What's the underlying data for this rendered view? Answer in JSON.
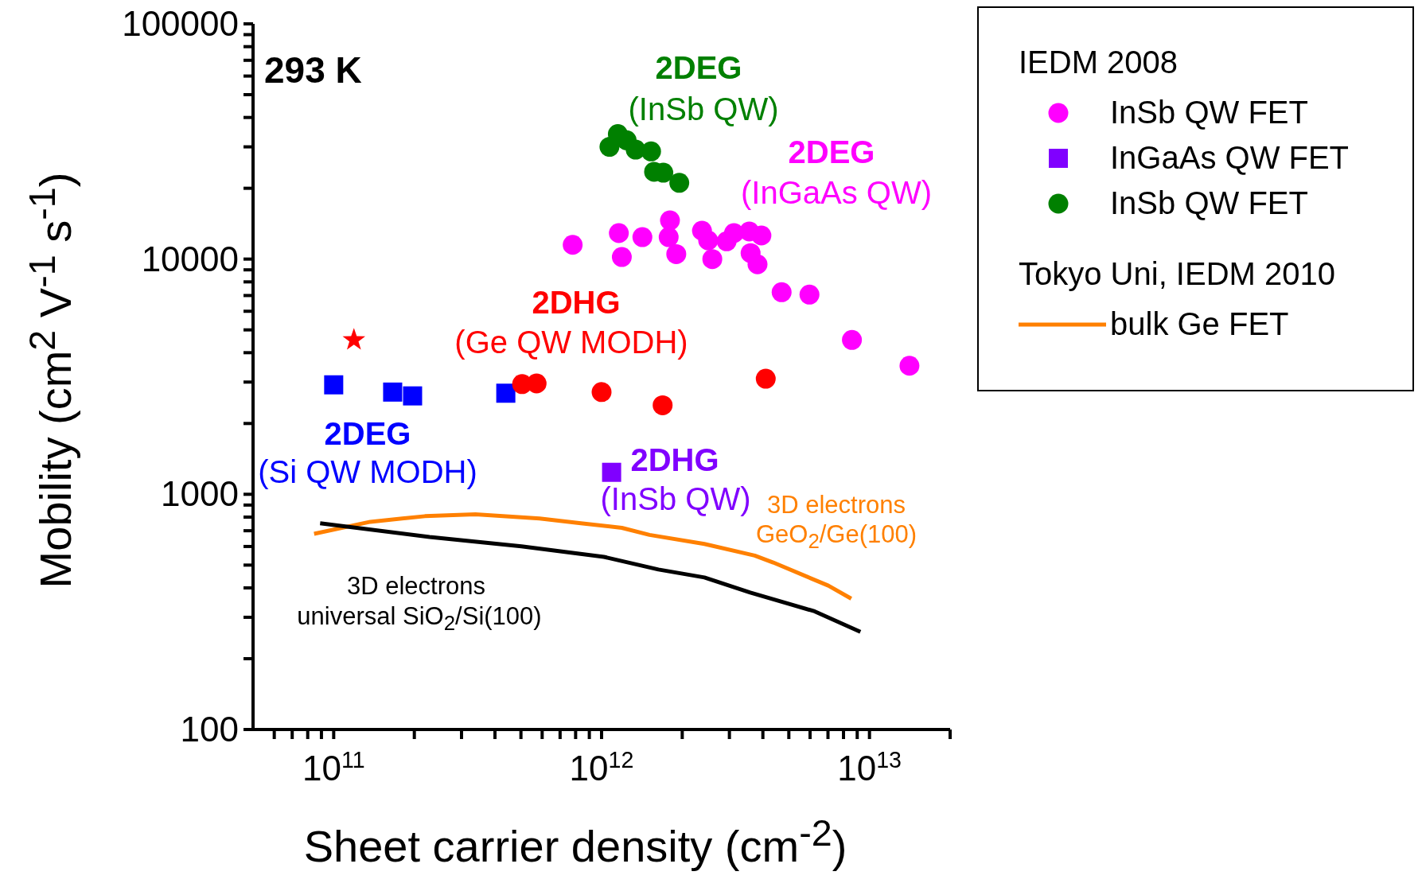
{
  "chart_data": {
    "type": "scatter",
    "xlabel": "Sheet carrier density (cm$^{-2}$)",
    "ylabel": "Mobility (cm$^{2}$ V$^{-1}$ s$^{-1}$)",
    "log": "xy",
    "legend": "right",
    "grid": false,
    "xlim": [
      50000000000.0,
      20000000000000.0
    ],
    "ylim": [
      100,
      100000
    ],
    "xticks": [
      {
        "value": 60000000000.0,
        "label": null
      },
      {
        "value": 70000000000.0,
        "label": null
      },
      {
        "value": 80000000000.0,
        "label": null
      },
      {
        "value": 90000000000.0,
        "label": null
      },
      {
        "value": 100000000000.0,
        "label": "10$^{11}$"
      },
      {
        "value": 200000000000.0,
        "label": null
      },
      {
        "value": 300000000000.0,
        "label": null
      },
      {
        "value": 400000000000.0,
        "label": null
      },
      {
        "value": 500000000000.0,
        "label": null
      },
      {
        "value": 600000000000.0,
        "label": null
      },
      {
        "value": 700000000000.0,
        "label": null
      },
      {
        "value": 800000000000.0,
        "label": null
      },
      {
        "value": 900000000000.0,
        "label": null
      },
      {
        "value": 1000000000000.0,
        "label": "10$^{12}$"
      },
      {
        "value": 2000000000000.0,
        "label": null
      },
      {
        "value": 3000000000000.0,
        "label": null
      },
      {
        "value": 4000000000000.0,
        "label": null
      },
      {
        "value": 5000000000000.0,
        "label": null
      },
      {
        "value": 6000000000000.0,
        "label": null
      },
      {
        "value": 7000000000000.0,
        "label": null
      },
      {
        "value": 8000000000000.0,
        "label": null
      },
      {
        "value": 9000000000000.0,
        "label": null
      },
      {
        "value": 10000000000000.0,
        "label": "10$^{13}$"
      },
      {
        "value": 20000000000000.0,
        "label": null
      }
    ],
    "yticks": [
      100,
      {
        "value": 200,
        "label": null
      },
      {
        "value": 300,
        "label": null
      },
      {
        "value": 400,
        "label": null
      },
      {
        "value": 500,
        "label": null
      },
      {
        "value": 600,
        "label": null
      },
      {
        "value": 700,
        "label": null
      },
      {
        "value": 800,
        "label": null
      },
      {
        "value": 900,
        "label": null
      },
      1000,
      {
        "value": 2000,
        "label": null
      },
      {
        "value": 3000,
        "label": null
      },
      {
        "value": 4000,
        "label": null
      },
      {
        "value": 5000,
        "label": null
      },
      {
        "value": 6000,
        "label": null
      },
      {
        "value": 7000,
        "label": null
      },
      {
        "value": 8000,
        "label": null
      },
      {
        "value": 9000,
        "label": null
      },
      10000,
      {
        "value": 20000,
        "label": null
      },
      {
        "value": 30000,
        "label": null
      },
      {
        "value": 40000,
        "label": null
      },
      {
        "value": 50000,
        "label": null
      },
      {
        "value": 60000,
        "label": null
      },
      {
        "value": 70000,
        "label": null
      },
      {
        "value": 80000,
        "label": null
      },
      {
        "value": 90000,
        "label": null
      },
      100000
    ],
    "series": [
      {
        "name": "InSb QW FET",
        "color": "#ff00ff",
        "marker": "circle",
        "x": [
          780000000000.0,
          1160000000000.0,
          1190000000000.0,
          1420000000000.0,
          1800000000000.0,
          1780000000000.0,
          1900000000000.0,
          2370000000000.0,
          2500000000000.0,
          2590000000000.0,
          2930000000000.0,
          3120000000000.0,
          3560000000000.0,
          3600000000000.0,
          3950000000000.0,
          3820000000000.0,
          4700000000000.0,
          5970000000000.0,
          8600000000000.0,
          14100000000000.0
        ],
        "values": [
          11500,
          12900,
          10200,
          12400,
          14600,
          12400,
          10500,
          13200,
          12000,
          10000,
          11900,
          12900,
          13100,
          10600,
          12600,
          9500,
          7230,
          7060,
          4530,
          3520
        ]
      },
      {
        "name": "InGaAs QW FET",
        "color": "#8000ff",
        "marker": "square",
        "x": [
          1090000000000.0
        ],
        "values": [
          1240
        ]
      },
      {
        "name": "InSb QW FET",
        "color": "#008000",
        "marker": "circle",
        "x": [
          1070000000000.0,
          1150000000000.0,
          1240000000000.0,
          1340000000000.0,
          1530000000000.0,
          1570000000000.0,
          1700000000000.0,
          1950000000000.0
        ],
        "values": [
          30000,
          34000,
          32000,
          29200,
          28700,
          23500,
          23300,
          21100
        ]
      },
      {
        "name": "bulk Ge FET",
        "type": "line",
        "color": "#ff8000",
        "x": [
          84500000000.0,
          137000000000.0,
          219000000000.0,
          338000000000.0,
          587000000000.0,
          837000000000.0,
          1190000000000.0,
          1510000000000.0,
          2420000000000.0,
          3730000000000.0,
          4370000000000.0,
          7020000000000.0,
          8550000000000.0
        ],
        "values": [
          679,
          764,
          807,
          822,
          789,
          753,
          720,
          672,
          615,
          549,
          513,
          409,
          360
        ]
      },
      {
        "color": "#0000ff",
        "marker": "square",
        "x": [
          100000000000.0,
          166000000000.0,
          197000000000.0,
          439000000000.0
        ],
        "values": [
          2920,
          2720,
          2620,
          2690
        ]
      },
      {
        "color": "#ff0000",
        "marker": "circle",
        "x": [
          505000000000.0,
          572000000000.0,
          1000000000000.0,
          1690000000000.0,
          4100000000000.0
        ],
        "values": [
          2940,
          2960,
          2720,
          2390,
          3100
        ]
      },
      {
        "color": "#ff0000",
        "marker": "star",
        "x": [
          119000000000.0
        ],
        "values": [
          4530
        ]
      },
      {
        "type": "line",
        "color": "#000000",
        "x": [
          89000000000.0,
          228000000000.0,
          502000000000.0,
          1020000000000.0,
          1630000000000.0,
          2420000000000.0,
          3590000000000.0,
          6240000000000.0,
          9250000000000.0
        ],
        "values": [
          753,
          658,
          601,
          542,
          479,
          443,
          382,
          318,
          260
        ]
      }
    ],
    "annotations": [
      "293 K",
      "2DEG",
      "(InSb QW)",
      "2DEG",
      "(InGaAs QW)",
      "2DHG",
      "(Ge QW MODH)",
      "2DEG",
      "(Si QW MODH)",
      "2DHG",
      "(InSb QW)",
      "3D electrons",
      "GeO$_{2}$/Ge(100)",
      "3D electrons",
      "universal SiO$_{2}$/Si(100)",
      "IEDM 2008",
      "Tokyo Uni, IEDM 2010"
    ]
  }
}
